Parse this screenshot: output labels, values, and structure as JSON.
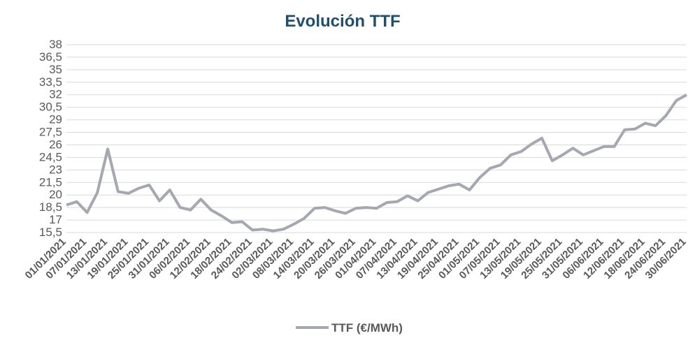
{
  "chart_data": {
    "type": "line",
    "title": "Evolución TTF",
    "categories": [
      "01/01/2021",
      null,
      "07/01/2021",
      null,
      "13/01/2021",
      null,
      "19/01/2021",
      null,
      "25/01/2021",
      null,
      "31/01/2021",
      null,
      "06/02/2021",
      null,
      "12/02/2021",
      null,
      "18/02/2021",
      null,
      "24/02/2021",
      null,
      "02/03/2021",
      null,
      "08/03/2021",
      null,
      "14/03/2021",
      null,
      "20/03/2021",
      null,
      "26/03/2021",
      null,
      "01/04/2021",
      null,
      "07/04/2021",
      null,
      "13/04/2021",
      null,
      "19/04/2021",
      null,
      "25/04/2021",
      null,
      "01/05/2021",
      null,
      "07/05/2021",
      null,
      "13/05/2021",
      null,
      "19/05/2021",
      null,
      "25/05/2021",
      null,
      "31/05/2021",
      null,
      "06/06/2021",
      null,
      "12/06/2021",
      null,
      "18/06/2021",
      null,
      "24/06/2021",
      null,
      "30/06/2021"
    ],
    "series": [
      {
        "name": "TTF (€/MWh)",
        "color": "#a5a7b1",
        "values": [
          18.8,
          19.2,
          17.9,
          20.3,
          25.5,
          20.4,
          20.2,
          20.8,
          21.2,
          19.3,
          20.6,
          18.5,
          18.2,
          19.5,
          18.2,
          17.5,
          16.7,
          16.8,
          15.8,
          15.9,
          15.7,
          15.9,
          16.5,
          17.2,
          18.4,
          18.5,
          18.1,
          17.8,
          18.4,
          18.5,
          18.4,
          19.1,
          19.2,
          19.9,
          19.3,
          20.3,
          20.7,
          21.1,
          21.3,
          20.6,
          22.1,
          23.2,
          23.6,
          24.8,
          25.2,
          26.1,
          26.8,
          24.1,
          24.8,
          25.6,
          24.8,
          25.3,
          25.8,
          25.8,
          27.8,
          27.9,
          28.6,
          28.3,
          29.5,
          31.3,
          32.0
        ]
      }
    ],
    "ylim": [
      15.5,
      38
    ],
    "yticks": [
      {
        "value": 15.5,
        "label": "15,5"
      },
      17,
      {
        "value": 18.5,
        "label": "18,5"
      },
      20,
      {
        "value": 21.5,
        "label": "21,5"
      },
      23,
      {
        "value": 24.5,
        "label": "24,5"
      },
      26,
      {
        "value": 27.5,
        "label": "27,5"
      },
      29,
      {
        "value": 30.5,
        "label": "30,5"
      },
      32,
      {
        "value": 33.5,
        "label": "33,5"
      },
      35,
      {
        "value": 36.5,
        "label": "36,5"
      },
      38
    ],
    "grid": true
  }
}
